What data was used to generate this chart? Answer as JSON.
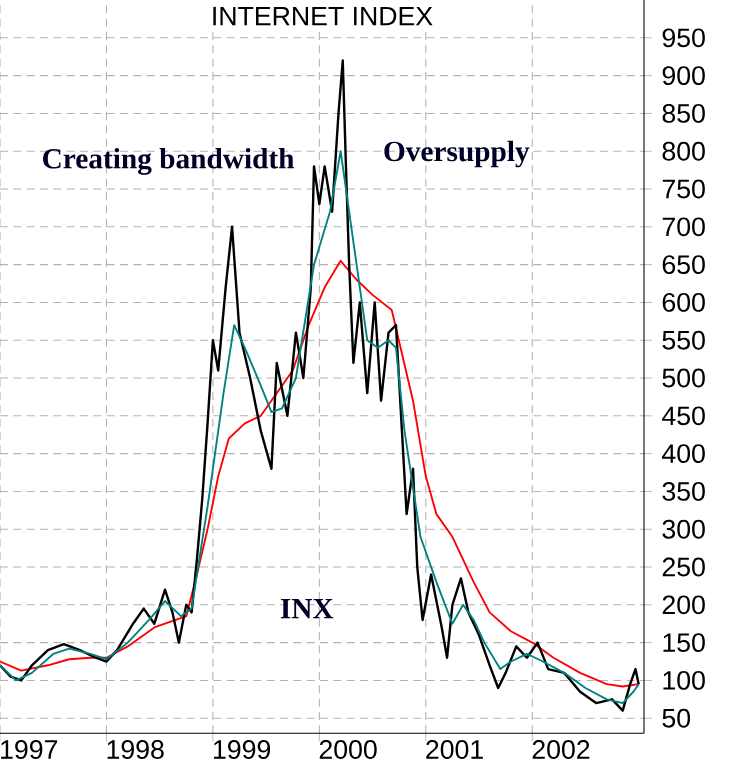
{
  "chart_data": {
    "type": "line",
    "title": "INTERNET INDEX",
    "annotations": [
      "Creating bandwidth",
      "Oversupply",
      "INX"
    ],
    "xlim": [
      1997,
      2003.05
    ],
    "ylim": [
      30,
      1000
    ],
    "xticks": [
      {
        "value": 1997,
        "label": null
      },
      {
        "value": 1998,
        "label": null
      },
      {
        "value": 1999,
        "label": null
      },
      {
        "value": 2000,
        "label": null
      },
      {
        "value": 2001,
        "label": null
      },
      {
        "value": 2002,
        "label": null
      },
      {
        "value": 1997.27,
        "label": "1997"
      },
      {
        "value": 1998.27,
        "label": "1998"
      },
      {
        "value": 1999.27,
        "label": "1999"
      },
      {
        "value": 2000.27,
        "label": "2000"
      },
      {
        "value": 2001.27,
        "label": "2001"
      },
      {
        "value": 2002.27,
        "label": "2002"
      }
    ],
    "yticks": [
      50,
      100,
      150,
      200,
      250,
      300,
      350,
      400,
      450,
      500,
      550,
      600,
      650,
      700,
      750,
      800,
      850,
      900,
      950
    ],
    "grid": true,
    "marker": "none",
    "line_style": "solid",
    "series": [
      {
        "color": "#ff0000",
        "x": [
          1997.0,
          1997.2,
          1997.45,
          1997.65,
          1997.85,
          1998.0,
          1998.2,
          1998.45,
          1998.65,
          1998.75,
          1998.85,
          1998.95,
          1999.05,
          1999.15,
          1999.3,
          1999.45,
          1999.6,
          1999.75,
          1999.9,
          2000.05,
          2000.2,
          2000.35,
          2000.5,
          2000.68,
          2000.78,
          2000.88,
          2001.0,
          2001.1,
          2001.25,
          2001.45,
          2001.6,
          2001.8,
          2002.0,
          2002.2,
          2002.45,
          2002.7,
          2002.85,
          2003.0
        ],
        "values": [
          125,
          113,
          120,
          128,
          130,
          130,
          145,
          170,
          180,
          185,
          240,
          300,
          370,
          420,
          440,
          450,
          480,
          510,
          570,
          620,
          655,
          630,
          610,
          590,
          530,
          470,
          370,
          320,
          290,
          230,
          190,
          165,
          150,
          130,
          110,
          95,
          92,
          95
        ]
      },
      {
        "color": "#000000",
        "x": [
          1997.0,
          1997.1,
          1997.2,
          1997.3,
          1997.45,
          1997.6,
          1997.75,
          1997.9,
          1998.0,
          1998.1,
          1998.25,
          1998.35,
          1998.45,
          1998.55,
          1998.62,
          1998.68,
          1998.75,
          1998.8,
          1998.85,
          1998.9,
          1998.95,
          1999.0,
          1999.05,
          1999.12,
          1999.18,
          1999.25,
          1999.35,
          1999.45,
          1999.55,
          1999.6,
          1999.7,
          1999.78,
          1999.85,
          1999.92,
          1999.95,
          2000.0,
          2000.05,
          2000.12,
          2000.18,
          2000.22,
          2000.25,
          2000.28,
          2000.32,
          2000.38,
          2000.45,
          2000.52,
          2000.58,
          2000.65,
          2000.72,
          2000.78,
          2000.82,
          2000.88,
          2000.92,
          2000.97,
          2001.05,
          2001.15,
          2001.2,
          2001.25,
          2001.33,
          2001.4,
          2001.5,
          2001.6,
          2001.68,
          2001.75,
          2001.85,
          2001.95,
          2002.05,
          2002.15,
          2002.3,
          2002.45,
          2002.6,
          2002.75,
          2002.85,
          2002.92,
          2002.97,
          2003.0
        ],
        "values": [
          120,
          105,
          100,
          120,
          140,
          148,
          140,
          130,
          125,
          140,
          175,
          195,
          175,
          220,
          190,
          150,
          200,
          190,
          260,
          340,
          440,
          550,
          510,
          620,
          700,
          560,
          500,
          430,
          380,
          520,
          450,
          560,
          500,
          620,
          780,
          730,
          780,
          720,
          850,
          920,
          780,
          650,
          520,
          600,
          480,
          600,
          470,
          560,
          570,
          420,
          320,
          380,
          250,
          180,
          240,
          170,
          130,
          200,
          235,
          190,
          160,
          120,
          90,
          110,
          145,
          130,
          150,
          115,
          110,
          85,
          70,
          75,
          60,
          95,
          115,
          95
        ]
      },
      {
        "color": "#008080",
        "x": [
          1997.0,
          1997.15,
          1997.3,
          1997.5,
          1997.65,
          1997.85,
          1998.0,
          1998.2,
          1998.4,
          1998.55,
          1998.7,
          1998.8,
          1998.95,
          1999.1,
          1999.2,
          1999.3,
          1999.45,
          1999.55,
          1999.65,
          1999.78,
          1999.95,
          2000.1,
          2000.2,
          2000.3,
          2000.45,
          2000.55,
          2000.65,
          2000.72,
          2000.8,
          2000.95,
          2001.1,
          2001.25,
          2001.35,
          2001.45,
          2001.55,
          2001.7,
          2001.8,
          2001.95,
          2002.1,
          2002.3,
          2002.5,
          2002.7,
          2002.85,
          2002.95,
          2003.0
        ],
        "values": [
          120,
          100,
          110,
          135,
          142,
          135,
          128,
          150,
          180,
          205,
          185,
          195,
          330,
          480,
          570,
          540,
          490,
          455,
          460,
          500,
          650,
          720,
          800,
          700,
          550,
          540,
          550,
          540,
          430,
          290,
          230,
          175,
          200,
          180,
          150,
          115,
          125,
          135,
          125,
          110,
          90,
          75,
          70,
          85,
          95
        ]
      }
    ]
  }
}
